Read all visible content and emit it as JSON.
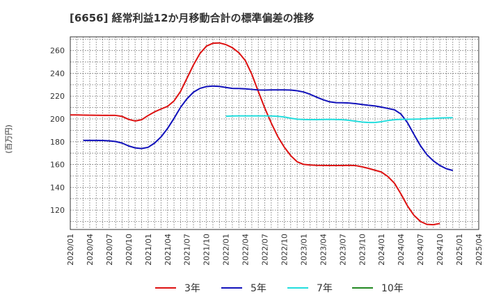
{
  "chart_data": {
    "type": "line",
    "title": "[6656]  経常利益12か月移動合計の標準偏差の推移",
    "ylabel": "(百万円)",
    "xlabel": "",
    "ylim": [
      103,
      272
    ],
    "yticks": [
      120,
      140,
      160,
      180,
      200,
      220,
      240,
      260
    ],
    "x_tick_labels": [
      "2020/01",
      "2020/04",
      "2020/07",
      "2020/10",
      "2021/01",
      "2021/04",
      "2021/07",
      "2021/10",
      "2022/01",
      "2022/04",
      "2022/07",
      "2022/10",
      "2023/01",
      "2023/04",
      "2023/07",
      "2023/10",
      "2024/01",
      "2024/04",
      "2024/07",
      "2024/10",
      "2025/01",
      "2025/04"
    ],
    "grid": true,
    "legend_position": "bottom",
    "series": [
      {
        "name": "3年",
        "color": "#dd1111",
        "values": [
          [
            "2020/01",
            203.5
          ],
          [
            "2020/02",
            203.5
          ],
          [
            "2020/03",
            203.4
          ],
          [
            "2020/04",
            203.3
          ],
          [
            "2020/05",
            203.2
          ],
          [
            "2020/06",
            203.1
          ],
          [
            "2020/07",
            203.1
          ],
          [
            "2020/08",
            203.1
          ],
          [
            "2020/09",
            202.2
          ],
          [
            "2020/10",
            199.6
          ],
          [
            "2020/11",
            198.2
          ],
          [
            "2020/12",
            199.3
          ],
          [
            "2021/01",
            203.0
          ],
          [
            "2021/02",
            206.2
          ],
          [
            "2021/03",
            208.7
          ],
          [
            "2021/04",
            211.0
          ],
          [
            "2021/05",
            215.8
          ],
          [
            "2021/06",
            224.1
          ],
          [
            "2021/07",
            235.7
          ],
          [
            "2021/08",
            247.4
          ],
          [
            "2021/09",
            257.4
          ],
          [
            "2021/10",
            263.9
          ],
          [
            "2021/11",
            266.4
          ],
          [
            "2021/12",
            266.7
          ],
          [
            "2022/01",
            265.2
          ],
          [
            "2022/02",
            262.5
          ],
          [
            "2022/03",
            258.1
          ],
          [
            "2022/04",
            251.2
          ],
          [
            "2022/05",
            239.2
          ],
          [
            "2022/06",
            224.1
          ],
          [
            "2022/07",
            209.5
          ],
          [
            "2022/08",
            196.4
          ],
          [
            "2022/09",
            184.6
          ],
          [
            "2022/10",
            175.3
          ],
          [
            "2022/11",
            167.8
          ],
          [
            "2022/12",
            162.4
          ],
          [
            "2023/01",
            160.1
          ],
          [
            "2023/02",
            159.6
          ],
          [
            "2023/03",
            159.3
          ],
          [
            "2023/04",
            159.2
          ],
          [
            "2023/05",
            159.1
          ],
          [
            "2023/06",
            159.1
          ],
          [
            "2023/07",
            159.1
          ],
          [
            "2023/08",
            159.3
          ],
          [
            "2023/09",
            159.1
          ],
          [
            "2023/10",
            158.0
          ],
          [
            "2023/11",
            156.6
          ],
          [
            "2023/12",
            155.0
          ],
          [
            "2024/01",
            153.4
          ],
          [
            "2024/02",
            149.4
          ],
          [
            "2024/03",
            143.6
          ],
          [
            "2024/04",
            134.2
          ],
          [
            "2024/05",
            123.8
          ],
          [
            "2024/06",
            115.5
          ],
          [
            "2024/07",
            110.1
          ],
          [
            "2024/08",
            107.5
          ],
          [
            "2024/09",
            107.2
          ],
          [
            "2024/10",
            108.3
          ]
        ]
      },
      {
        "name": "5年",
        "color": "#1111bb",
        "values": [
          [
            "2020/03",
            181.2
          ],
          [
            "2020/04",
            181.2
          ],
          [
            "2020/05",
            181.2
          ],
          [
            "2020/06",
            181.1
          ],
          [
            "2020/07",
            180.8
          ],
          [
            "2020/08",
            180.2
          ],
          [
            "2020/09",
            178.8
          ],
          [
            "2020/10",
            176.3
          ],
          [
            "2020/11",
            174.6
          ],
          [
            "2020/12",
            174.0
          ],
          [
            "2021/01",
            175.1
          ],
          [
            "2021/02",
            178.8
          ],
          [
            "2021/03",
            184.2
          ],
          [
            "2021/04",
            191.6
          ],
          [
            "2021/05",
            200.5
          ],
          [
            "2021/06",
            210.1
          ],
          [
            "2021/07",
            217.7
          ],
          [
            "2021/08",
            223.5
          ],
          [
            "2021/09",
            226.8
          ],
          [
            "2021/10",
            228.4
          ],
          [
            "2021/11",
            228.8
          ],
          [
            "2021/12",
            228.5
          ],
          [
            "2022/01",
            227.6
          ],
          [
            "2022/02",
            226.8
          ],
          [
            "2022/03",
            226.7
          ],
          [
            "2022/04",
            226.4
          ],
          [
            "2022/05",
            225.9
          ],
          [
            "2022/06",
            225.4
          ],
          [
            "2022/07",
            225.3
          ],
          [
            "2022/08",
            225.5
          ],
          [
            "2022/09",
            225.5
          ],
          [
            "2022/10",
            225.5
          ],
          [
            "2022/11",
            225.3
          ],
          [
            "2022/12",
            224.7
          ],
          [
            "2023/01",
            223.6
          ],
          [
            "2023/02",
            221.6
          ],
          [
            "2023/03",
            219.1
          ],
          [
            "2023/04",
            216.8
          ],
          [
            "2023/05",
            215.0
          ],
          [
            "2023/06",
            214.3
          ],
          [
            "2023/07",
            214.2
          ],
          [
            "2023/08",
            214.0
          ],
          [
            "2023/09",
            213.4
          ],
          [
            "2023/10",
            212.7
          ],
          [
            "2023/11",
            212.0
          ],
          [
            "2023/12",
            211.4
          ],
          [
            "2024/01",
            210.4
          ],
          [
            "2024/02",
            209.2
          ],
          [
            "2024/03",
            208.0
          ],
          [
            "2024/04",
            204.3
          ],
          [
            "2024/05",
            196.8
          ],
          [
            "2024/06",
            186.5
          ],
          [
            "2024/07",
            176.6
          ],
          [
            "2024/08",
            168.7
          ],
          [
            "2024/09",
            163.2
          ],
          [
            "2024/10",
            159.2
          ],
          [
            "2024/11",
            156.3
          ],
          [
            "2024/12",
            154.8
          ]
        ]
      },
      {
        "name": "7年",
        "color": "#22dddd",
        "values": [
          [
            "2022/01",
            202.4
          ],
          [
            "2022/02",
            202.6
          ],
          [
            "2022/03",
            202.7
          ],
          [
            "2022/04",
            202.7
          ],
          [
            "2022/05",
            202.7
          ],
          [
            "2022/06",
            202.7
          ],
          [
            "2022/07",
            202.7
          ],
          [
            "2022/08",
            202.6
          ],
          [
            "2022/09",
            202.3
          ],
          [
            "2022/10",
            201.7
          ],
          [
            "2022/11",
            200.6
          ],
          [
            "2022/12",
            199.8
          ],
          [
            "2023/01",
            199.5
          ],
          [
            "2023/02",
            199.4
          ],
          [
            "2023/03",
            199.4
          ],
          [
            "2023/04",
            199.5
          ],
          [
            "2023/05",
            199.6
          ],
          [
            "2023/06",
            199.5
          ],
          [
            "2023/07",
            199.3
          ],
          [
            "2023/08",
            198.8
          ],
          [
            "2023/09",
            198.0
          ],
          [
            "2023/10",
            197.3
          ],
          [
            "2023/11",
            196.9
          ],
          [
            "2023/12",
            196.9
          ],
          [
            "2024/01",
            197.6
          ],
          [
            "2024/02",
            198.6
          ],
          [
            "2024/03",
            199.3
          ],
          [
            "2024/04",
            199.6
          ],
          [
            "2024/05",
            199.7
          ],
          [
            "2024/06",
            199.8
          ],
          [
            "2024/07",
            199.9
          ],
          [
            "2024/08",
            200.2
          ],
          [
            "2024/09",
            200.5
          ],
          [
            "2024/10",
            200.8
          ],
          [
            "2024/11",
            201.0
          ],
          [
            "2024/12",
            201.1
          ]
        ]
      },
      {
        "name": "10年",
        "color": "#228822",
        "values": []
      }
    ]
  }
}
